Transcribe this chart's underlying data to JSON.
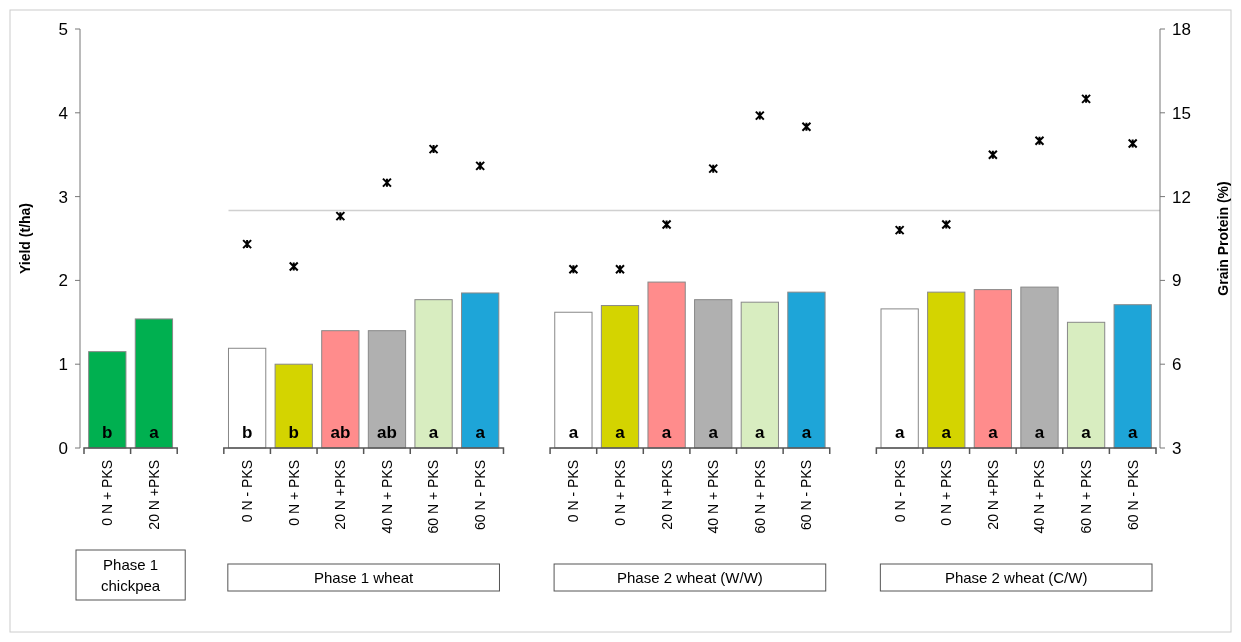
{
  "chart_data": {
    "type": "bar",
    "ylabel": "Yield (t/ha)",
    "y2label": "Grain Protein (%)",
    "categories": [
      "0 N + PKS",
      "20 N +PKS",
      null,
      "0 N - PKS",
      "0 N + PKS",
      "20 N +PKS",
      "40 N + PKS",
      "60 N + PKS",
      "60 N - PKS",
      null,
      "0 N - PKS",
      "0 N + PKS",
      "20 N +PKS",
      "40 N + PKS",
      "60 N + PKS",
      "60 N - PKS",
      null,
      "0 N - PKS",
      "0 N + PKS",
      "20 N +PKS",
      "40 N + PKS",
      "60 N + PKS",
      "60 N - PKS"
    ],
    "series": [
      {
        "values": [
          1.15,
          1.54,
          null,
          1.19,
          1.0,
          1.4,
          1.4,
          1.77,
          1.85,
          null,
          1.62,
          1.7,
          1.98,
          1.77,
          1.74,
          1.86,
          null,
          1.66,
          1.86,
          1.89,
          1.92,
          1.5,
          1.71
        ],
        "colors": [
          "#00b050",
          "#00b050",
          null,
          "#ffffff",
          "#d4d400",
          "#ff8c8c",
          "#b0b0b0",
          "#d8edc0",
          "#1ea5d8",
          null,
          "#ffffff",
          "#d4d400",
          "#ff8c8c",
          "#b0b0b0",
          "#d8edc0",
          "#1ea5d8",
          null,
          "#ffffff",
          "#d4d400",
          "#ff8c8c",
          "#b0b0b0",
          "#d8edc0",
          "#1ea5d8"
        ],
        "value_labels": [
          "b",
          "a",
          null,
          "b",
          "b",
          "ab",
          "ab",
          "a",
          "a",
          null,
          "a",
          "a",
          "a",
          "a",
          "a",
          "a",
          null,
          "a",
          "a",
          "a",
          "a",
          "a",
          "a"
        ]
      },
      {
        "type": "scatter",
        "axis": "y2",
        "color": "#000000",
        "values": [
          null,
          null,
          null,
          10.3,
          9.5,
          11.3,
          12.5,
          13.7,
          13.1,
          null,
          9.4,
          9.4,
          11.0,
          13.0,
          14.9,
          14.5,
          null,
          10.8,
          11.0,
          13.5,
          14.0,
          15.5,
          13.9
        ]
      }
    ],
    "ylim": [
      0,
      5
    ],
    "yticks": [
      0,
      1,
      2,
      3,
      4,
      5
    ],
    "y2lim": [
      3,
      18
    ],
    "y2ticks": [
      3,
      6,
      9,
      12,
      15,
      18
    ],
    "ref_lines": [
      {
        "axis": "y2",
        "value": 11.5,
        "color": "#d0d0d0"
      }
    ],
    "marker": "cross",
    "grid": false,
    "annotations": [
      "Phase 1 chickpea",
      "Phase 1 wheat",
      "Phase 2 wheat (W/W)",
      "Phase 2 wheat (C/W)"
    ]
  }
}
